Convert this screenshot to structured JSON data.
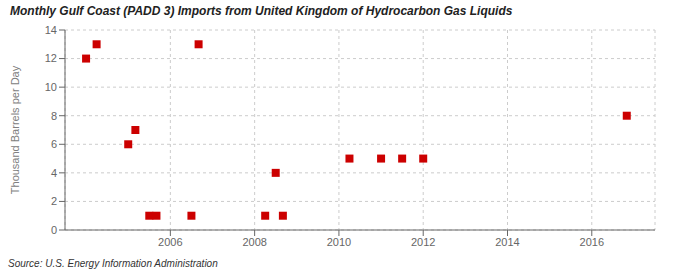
{
  "chart_data": {
    "type": "scatter",
    "title": "Monthly Gulf Coast (PADD 3) Imports from United Kingdom of Hydrocarbon Gas Liquids",
    "ylabel": "Thousand Barrels per Day",
    "annotations": [
      "Source: U.S. Energy Information Administration"
    ],
    "x": [
      2004.0,
      2004.25,
      2005.0,
      2005.17,
      2005.5,
      2005.67,
      2006.5,
      2006.67,
      2008.25,
      2008.5,
      2008.67,
      2010.25,
      2011.0,
      2011.5,
      2012.0,
      2016.83
    ],
    "values": [
      12,
      13,
      6,
      7,
      1,
      1,
      1,
      13,
      1,
      4,
      1,
      5,
      5,
      5,
      5,
      8
    ],
    "color": "#cc0000",
    "marker": "square",
    "xlim": [
      2003.5,
      2017.5
    ],
    "ylim": [
      0,
      14
    ],
    "xticks": [
      2006,
      2008,
      2010,
      2012,
      2014,
      2016
    ],
    "yticks": [
      0,
      2,
      4,
      6,
      8,
      10,
      12,
      14
    ],
    "grid": true
  }
}
